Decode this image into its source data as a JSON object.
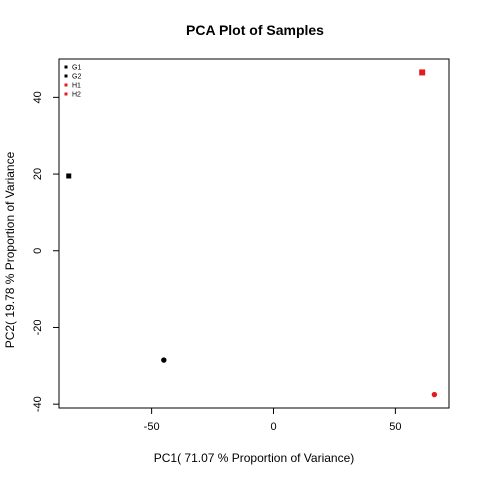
{
  "chart_data": {
    "type": "scatter",
    "title": "PCA Plot of Samples",
    "xlabel": "PC1( 71.07 % Proportion of Variance)",
    "ylabel": "PC2( 19.78 % Proportion of Variance",
    "xlim": [
      -88,
      72
    ],
    "ylim": [
      -41,
      50
    ],
    "x_ticks": [
      -50,
      0,
      50
    ],
    "y_ticks": [
      -40,
      -20,
      0,
      20,
      40
    ],
    "grid": false,
    "legend_position": "top-left",
    "series": [
      {
        "name": "G1",
        "color": "#000000",
        "marker": "square",
        "points": [
          {
            "x": -84,
            "y": 19.5
          }
        ]
      },
      {
        "name": "G2",
        "color": "#000000",
        "marker": "circle",
        "points": [
          {
            "x": -45,
            "y": -28.5
          }
        ]
      },
      {
        "name": "H1",
        "color": "#e41a1c",
        "marker": "square",
        "points": [
          {
            "x": 61,
            "y": 46.5
          }
        ]
      },
      {
        "name": "H2",
        "color": "#e41a1c",
        "marker": "circle",
        "points": [
          {
            "x": 66,
            "y": -37.5
          }
        ]
      }
    ]
  }
}
